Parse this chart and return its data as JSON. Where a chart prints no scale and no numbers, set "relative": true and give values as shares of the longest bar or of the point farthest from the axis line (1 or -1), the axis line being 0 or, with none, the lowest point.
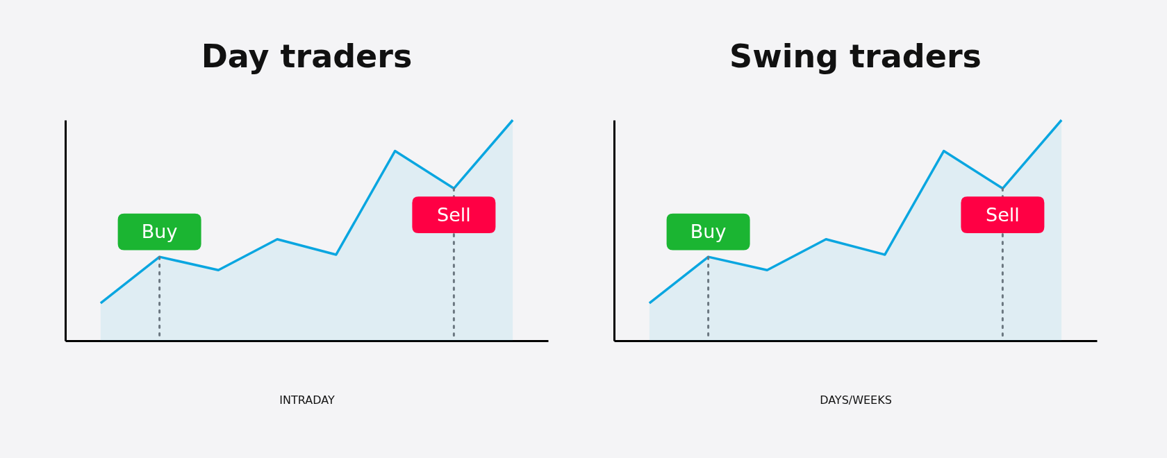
{
  "chart_data": [
    {
      "type": "area",
      "title": "Day traders",
      "xlabel": "INTRADAY",
      "relative": true,
      "categories": [
        null,
        null,
        null,
        null,
        null,
        null,
        null,
        null
      ],
      "series": [
        {
          "color": "#0aa6e0",
          "values": [
            0.17,
            0.38,
            0.32,
            0.46,
            0.39,
            0.86,
            0.69,
            1.0
          ]
        }
      ],
      "annotations": [
        {
          "text": "Buy",
          "y": 0.38
        },
        {
          "text": "Sell",
          "y": 0.69
        }
      ]
    },
    {
      "type": "area",
      "title": "Swing traders",
      "xlabel": "DAYS/WEEKS",
      "relative": true,
      "categories": [
        null,
        null,
        null,
        null,
        null,
        null,
        null,
        null
      ],
      "series": [
        {
          "color": "#0aa6e0",
          "values": [
            0.17,
            0.38,
            0.32,
            0.46,
            0.39,
            0.86,
            0.69,
            1.0
          ]
        }
      ],
      "annotations": [
        {
          "text": "Buy",
          "y": 0.38
        },
        {
          "text": "Sell",
          "y": 0.69
        }
      ]
    }
  ]
}
